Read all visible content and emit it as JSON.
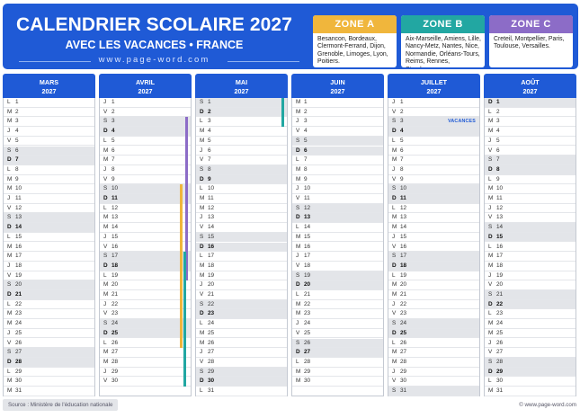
{
  "header": {
    "title": "CALENDRIER SCOLAIRE 2027",
    "subtitle": "AVEC LES VACANCES • FRANCE",
    "url": "www.page-word.com"
  },
  "zones": [
    {
      "label": "ZONE A",
      "color": "#f0b63c",
      "cities": "Besancon, Bordeaux, Clermont-Ferrand, Dijon, Grenoble, Limoges, Lyon, Poitiers."
    },
    {
      "label": "ZONE B",
      "color": "#22a7a2",
      "cities": "Aix-Marseille, Amiens, Lille, Nancy-Metz, Nantes, Nice, Normandie, Orléans-Tours, Reims, Rennes, Strasbourg."
    },
    {
      "label": "ZONE C",
      "color": "#8c6cc7",
      "cities": "Creteil, Montpellier, Paris, Toulouse, Versailles."
    }
  ],
  "months": [
    {
      "name": "MARS",
      "year": "2027",
      "first_weekday": 0,
      "days": 31,
      "notes": {}
    },
    {
      "name": "AVRIL",
      "year": "2027",
      "first_weekday": 3,
      "days": 30,
      "notes": {}
    },
    {
      "name": "MAI",
      "year": "2027",
      "first_weekday": 5,
      "days": 31,
      "notes": {}
    },
    {
      "name": "JUIN",
      "year": "2027",
      "first_weekday": 1,
      "days": 30,
      "notes": {}
    },
    {
      "name": "JUILLET",
      "year": "2027",
      "first_weekday": 3,
      "days": 31,
      "notes": {
        "3": "VACANCES"
      }
    },
    {
      "name": "AOÛT",
      "year": "2027",
      "first_weekday": 6,
      "days": 31,
      "notes": {}
    }
  ],
  "weekday_letters": [
    "L",
    "M",
    "M",
    "J",
    "V",
    "S",
    "D"
  ],
  "vacations": [
    {
      "zone": "C",
      "color": "#8c6cc7",
      "month_index": 1,
      "from_day": 3,
      "to_day": 19
    },
    {
      "zone": "A",
      "color": "#f0b63c",
      "month_index": 1,
      "from_day": 10,
      "to_day": 26
    },
    {
      "zone": "B",
      "color": "#22a7a2",
      "month_index": 1,
      "from_day": 17,
      "to_day": 30
    },
    {
      "zone": "B",
      "color": "#22a7a2",
      "month_index": 2,
      "from_day": 1,
      "to_day": 3
    }
  ],
  "footer": {
    "source": "Source : Ministère de l'éducation nationale",
    "copyright": "© www.page-word.com"
  }
}
